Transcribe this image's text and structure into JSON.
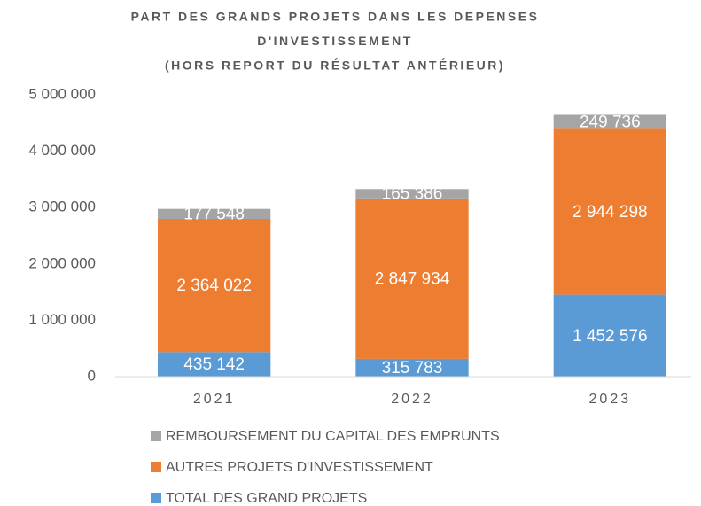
{
  "chart_data": {
    "type": "stacked_bar",
    "title": [
      "PART DES GRANDS PROJETS DANS LES DEPENSES",
      "D'INVESTISSEMENT",
      "(HORS REPORT DU RÉSULTAT ANTÉRIEUR)"
    ],
    "categories": [
      "2021",
      "2022",
      "2023"
    ],
    "series": [
      {
        "name": "TOTAL DES GRAND PROJETS",
        "color": "#5b9bd5",
        "values": [
          435142,
          315783,
          1452576
        ],
        "value_labels": [
          "435 142",
          "315 783",
          "1 452 576"
        ]
      },
      {
        "name": "AUTRES PROJETS D'INVESTISSEMENT",
        "color": "#ed7d31",
        "values": [
          2364022,
          2847934,
          2944298
        ],
        "value_labels": [
          "2 364 022",
          "2 847 934",
          "2 944 298"
        ]
      },
      {
        "name": "REMBOURSEMENT DU CAPITAL DES EMPRUNTS",
        "color": "#a5a5a5",
        "values": [
          177548,
          165386,
          249736
        ],
        "value_labels": [
          "177 548",
          "165 386",
          "249 736"
        ]
      }
    ],
    "ylim": [
      0,
      5000000
    ],
    "yticks": [
      0,
      {
        "value": 1000000,
        "label": "1 000 000"
      },
      {
        "value": 2000000,
        "label": "2 000 000"
      },
      {
        "value": 3000000,
        "label": "3 000 000"
      },
      {
        "value": 4000000,
        "label": "4 000 000"
      },
      {
        "value": 5000000,
        "label": "5 000 000"
      }
    ],
    "grid": false,
    "legend": "bottom"
  }
}
